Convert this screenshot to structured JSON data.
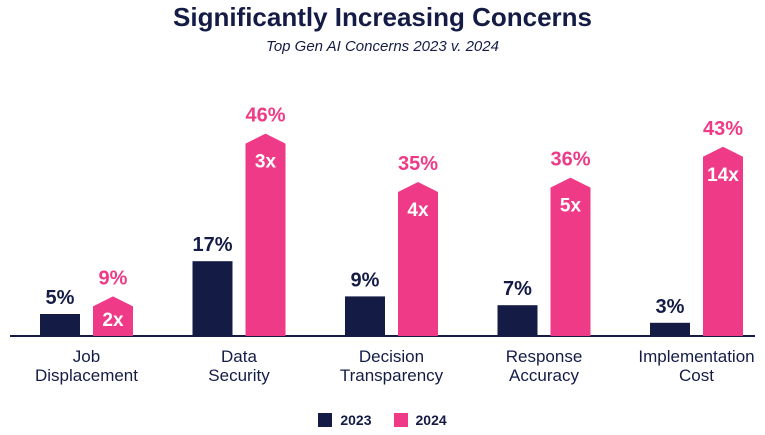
{
  "chart_data": {
    "type": "bar",
    "title": "Significantly Increasing Concerns",
    "subtitle": "Top Gen AI Concerns 2023 v. 2024",
    "categories": [
      [
        "Job",
        "Displacement"
      ],
      [
        "Data",
        "Security"
      ],
      [
        "Decision",
        "Transparency"
      ],
      [
        "Response",
        "Accuracy"
      ],
      [
        "Implementation",
        "Cost"
      ]
    ],
    "series": [
      {
        "name": "2023",
        "color": "#141c46",
        "values": [
          5,
          17,
          9,
          7,
          3
        ],
        "labels": [
          "5%",
          "17%",
          "9%",
          "7%",
          "3%"
        ]
      },
      {
        "name": "2024",
        "color": "#ee3a87",
        "values": [
          9,
          46,
          35,
          36,
          43
        ],
        "labels": [
          "9%",
          "46%",
          "35%",
          "36%",
          "43%"
        ]
      }
    ],
    "multipliers": [
      "2x",
      "3x",
      "4x",
      "5x",
      "14x"
    ],
    "ylim": [
      0,
      50
    ],
    "grid": false,
    "legend_position": "bottom"
  }
}
